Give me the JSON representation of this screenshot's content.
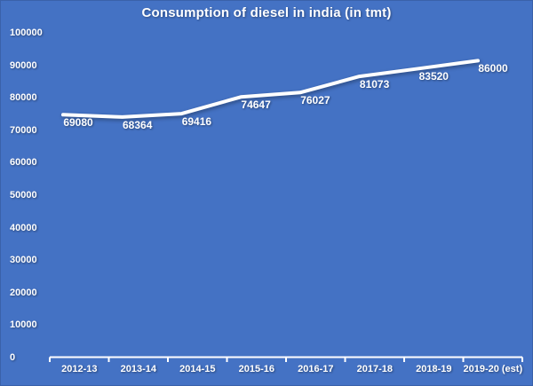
{
  "window": {
    "background_color": "#4472C4",
    "border_color": "#3A61A9",
    "accent_color": "#FFFFFF"
  },
  "chart_data": {
    "type": "line",
    "title": "Consumption of diesel in india (in tmt)",
    "categories": [
      "2012-13",
      "2013-14",
      "2014-15",
      "2015-16",
      "2016-17",
      "2017-18",
      "2018-19",
      "2019-20 (est)"
    ],
    "values": [
      69080,
      68364,
      69416,
      74647,
      76027,
      81073,
      83520,
      86000
    ],
    "data_labels": [
      "69080",
      "68364",
      "69416",
      "74647",
      "76027",
      "81073",
      "83520",
      "86000"
    ],
    "xlabel": "",
    "ylabel": "",
    "ylim": [
      0,
      100000
    ],
    "yticks": [
      0,
      10000,
      20000,
      30000,
      40000,
      50000,
      60000,
      70000,
      80000,
      90000,
      100000
    ],
    "ytick_labels": [
      "0",
      "10000",
      "20000",
      "30000",
      "40000",
      "50000",
      "60000",
      "70000",
      "80000",
      "90000",
      "100000"
    ],
    "grid": false,
    "legend_position": "none",
    "line_color": "#FFFFFF",
    "text_color": "#FFFFFF"
  }
}
